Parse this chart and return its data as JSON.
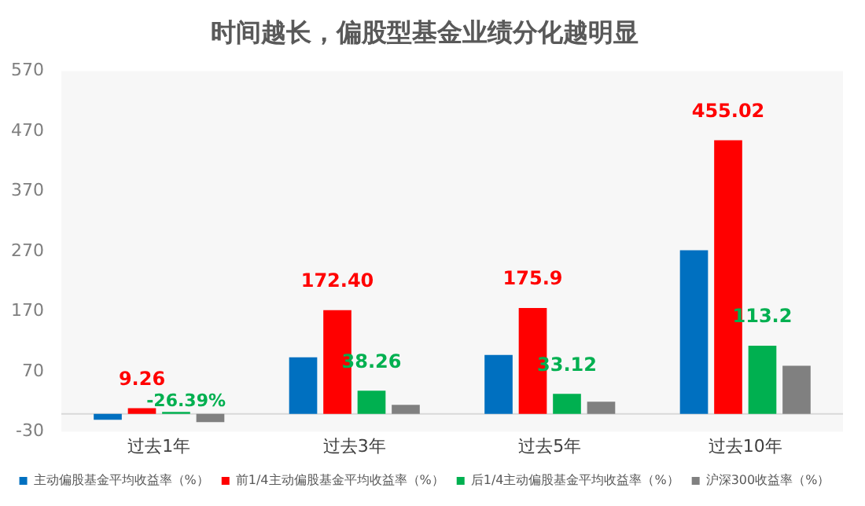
{
  "chart_data": {
    "type": "bar",
    "title": "时间越长，偏股型基金业绩分化越明显",
    "categories": [
      "过去1年",
      "过去3年",
      "过去5年",
      "过去10年"
    ],
    "series": [
      {
        "name": "主动偏股基金平均收益率（%）",
        "color": "#0070c0",
        "values": [
          -10,
          94,
          98,
          272
        ]
      },
      {
        "name": "前1/4主动偏股基金平均收益率（%）",
        "color": "#ff0000",
        "values": [
          9.26,
          172.4,
          175.9,
          455.02
        ],
        "value_labels": [
          "9.26",
          "172.40",
          "175.9",
          "455.02"
        ]
      },
      {
        "name": "后1/4主动偏股基金平均收益率（%）",
        "color": "#00b050",
        "values": [
          3,
          38.26,
          33.12,
          113.2
        ],
        "value_labels": [
          null,
          "38.26",
          "33.12",
          "113.2"
        ]
      },
      {
        "name": "沪深300收益率（%）",
        "color": "#808080",
        "values": [
          -14,
          15,
          20,
          80
        ]
      }
    ],
    "ylim": [
      -30,
      570
    ],
    "yticks": [
      -30,
      70,
      170,
      270,
      370,
      470,
      570
    ],
    "grid": false,
    "legend": "bottom",
    "annotations": [
      {
        "text": "-26.39%",
        "x": "过去1年",
        "y": 3
      }
    ]
  }
}
